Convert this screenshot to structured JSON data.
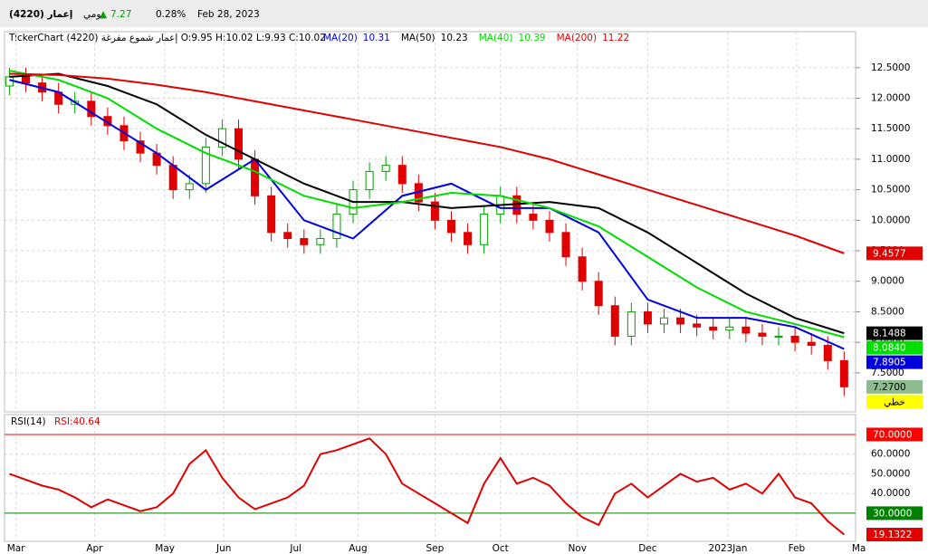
{
  "header": {
    "symbol": "إعمار (4220)",
    "period": "يومي",
    "change_arrow": "▲",
    "price": 7.27,
    "change": "0.28%",
    "date": "Feb 28, 2023",
    "legend_title": "TickerChart إعمار شموع مفرغة (4220) O:9.95 H:10.02 L:9.93 C:10.02"
  },
  "chart_data": [
    {
      "type": "candlestick",
      "up_color": "#00a000",
      "down_color": "#e00000",
      "x": [
        0,
        1,
        2,
        3,
        4,
        5,
        6,
        7,
        8,
        9,
        10,
        11,
        12,
        13,
        14,
        15,
        16,
        17,
        18,
        19,
        20,
        21,
        22,
        23,
        24,
        25,
        26,
        27,
        28,
        29,
        30,
        31,
        32,
        33,
        34,
        35,
        36,
        37,
        38,
        39,
        40,
        41,
        42,
        43,
        44,
        45,
        46,
        47,
        48,
        49,
        50,
        51
      ],
      "open": [
        12.2,
        12.35,
        12.25,
        12.1,
        11.9,
        11.95,
        11.7,
        11.55,
        11.3,
        11.1,
        10.9,
        10.5,
        10.6,
        11.2,
        11.5,
        11.0,
        10.4,
        9.8,
        9.7,
        9.6,
        9.7,
        10.1,
        10.5,
        10.8,
        10.9,
        10.6,
        10.3,
        10.0,
        9.8,
        9.6,
        10.1,
        10.4,
        10.1,
        10.0,
        9.8,
        9.4,
        9.0,
        8.6,
        8.1,
        8.5,
        8.3,
        8.4,
        8.3,
        8.25,
        8.2,
        8.25,
        8.15,
        8.1,
        8.1,
        8.0,
        7.95,
        7.7
      ],
      "high": [
        12.5,
        12.5,
        12.4,
        12.25,
        12.1,
        12.1,
        11.85,
        11.7,
        11.45,
        11.25,
        11.05,
        10.75,
        11.35,
        11.65,
        11.65,
        11.15,
        10.55,
        9.95,
        9.85,
        9.85,
        10.25,
        10.65,
        10.95,
        11.05,
        11.05,
        10.75,
        10.45,
        10.15,
        9.95,
        10.25,
        10.55,
        10.55,
        10.25,
        10.15,
        9.95,
        9.55,
        9.15,
        8.75,
        8.65,
        8.65,
        8.55,
        8.55,
        8.45,
        8.4,
        8.4,
        8.4,
        8.3,
        8.25,
        8.25,
        8.15,
        8.1,
        7.85
      ],
      "low": [
        12.05,
        12.1,
        11.95,
        11.75,
        11.75,
        11.55,
        11.4,
        11.15,
        10.95,
        10.75,
        10.35,
        10.35,
        10.45,
        11.05,
        10.85,
        10.25,
        9.65,
        9.55,
        9.45,
        9.45,
        9.55,
        9.95,
        10.35,
        10.65,
        10.45,
        10.15,
        9.85,
        9.65,
        9.45,
        9.45,
        9.95,
        9.95,
        9.85,
        9.65,
        9.25,
        8.85,
        8.45,
        7.95,
        7.95,
        8.15,
        8.15,
        8.15,
        8.1,
        8.05,
        8.05,
        8.0,
        7.95,
        7.95,
        7.85,
        7.8,
        7.55,
        7.12
      ],
      "close": [
        12.35,
        12.25,
        12.1,
        11.9,
        11.95,
        11.7,
        11.55,
        11.3,
        11.1,
        10.9,
        10.5,
        10.6,
        11.2,
        11.5,
        11.0,
        10.4,
        9.8,
        9.7,
        9.6,
        9.7,
        10.1,
        10.5,
        10.8,
        10.9,
        10.6,
        10.3,
        10.0,
        9.8,
        9.6,
        10.1,
        10.4,
        10.1,
        10.0,
        9.8,
        9.4,
        9.0,
        8.6,
        8.1,
        8.5,
        8.3,
        8.4,
        8.3,
        8.25,
        8.2,
        8.25,
        8.15,
        8.1,
        8.1,
        8.0,
        7.95,
        7.7,
        7.27
      ],
      "close_label": "7.2700",
      "close_badge_color": "#8fbc8f",
      "scale_mode": "خطي",
      "series": [
        {
          "name": "MA(20)",
          "legend_value": 10.31,
          "color": "#0000dd",
          "x": [
            0,
            3,
            6,
            9,
            12,
            15,
            18,
            21,
            24,
            27,
            30,
            33,
            36,
            39,
            42,
            45,
            48,
            51
          ],
          "values": [
            12.3,
            12.1,
            11.6,
            11.1,
            10.5,
            11.0,
            10.0,
            9.7,
            10.4,
            10.6,
            10.2,
            10.2,
            9.8,
            8.7,
            8.4,
            8.4,
            8.25,
            7.8905
          ],
          "last_label": "7.8905"
        },
        {
          "name": "MA(50)",
          "legend_value": 10.23,
          "color": "#000000",
          "x": [
            0,
            3,
            6,
            9,
            12,
            15,
            18,
            21,
            24,
            27,
            30,
            33,
            36,
            39,
            42,
            45,
            48,
            51
          ],
          "values": [
            12.35,
            12.4,
            12.2,
            11.9,
            11.4,
            11.0,
            10.6,
            10.3,
            10.3,
            10.2,
            10.25,
            10.3,
            10.2,
            9.8,
            9.3,
            8.8,
            8.4,
            8.1488
          ],
          "last_label": "8.1488"
        },
        {
          "name": "MA(40)",
          "legend_value": 10.39,
          "color": "#00dd00",
          "x": [
            0,
            3,
            6,
            9,
            12,
            15,
            18,
            21,
            24,
            27,
            30,
            33,
            36,
            39,
            42,
            45,
            48,
            51
          ],
          "values": [
            12.45,
            12.3,
            12.0,
            11.5,
            11.1,
            10.8,
            10.4,
            10.2,
            10.3,
            10.45,
            10.4,
            10.2,
            9.9,
            9.4,
            8.9,
            8.5,
            8.3,
            8.084
          ],
          "last_label": "8.0840"
        },
        {
          "name": "MA(200)",
          "legend_value": 11.22,
          "color": "#e00000",
          "x": [
            0,
            3,
            6,
            9,
            12,
            15,
            18,
            21,
            24,
            27,
            30,
            33,
            36,
            39,
            42,
            45,
            48,
            51
          ],
          "values": [
            12.4,
            12.38,
            12.32,
            12.22,
            12.1,
            11.95,
            11.8,
            11.65,
            11.5,
            11.35,
            11.2,
            11.0,
            10.75,
            10.5,
            10.25,
            10.0,
            9.75,
            9.4577
          ],
          "last_label": "9.4577"
        }
      ],
      "xlim": [
        -0.3,
        51.7
      ],
      "ylim": [
        6.86,
        13.09
      ],
      "yticks": [
        {
          "value": 7.5,
          "label": "7.5000"
        },
        {
          "value": 8,
          "label": "8.0000"
        },
        {
          "value": 8.5,
          "label": "8.5000"
        },
        {
          "value": 9,
          "label": "9.0000"
        },
        {
          "value": 9.5,
          "label": "9.5000"
        },
        {
          "value": 10,
          "label": "10.0000"
        },
        {
          "value": 10.5,
          "label": "10.5000"
        },
        {
          "value": 11,
          "label": "11.0000"
        },
        {
          "value": 11.5,
          "label": "11.5000"
        },
        {
          "value": 12,
          "label": "12.0000"
        },
        {
          "value": 12.5,
          "label": "12.5000"
        }
      ],
      "grid": true
    },
    {
      "type": "line",
      "title": "RSI(14)",
      "current": "RSI:40.64",
      "color": "#e00000",
      "values": [
        50,
        47,
        44,
        42,
        38,
        33,
        37,
        34,
        31,
        33,
        40,
        55,
        62,
        48,
        38,
        32,
        35,
        38,
        44,
        60,
        62,
        65,
        68,
        60,
        45,
        40,
        35,
        30,
        25,
        45,
        58,
        45,
        48,
        44,
        35,
        28,
        24,
        40,
        45,
        38,
        44,
        50,
        46,
        48,
        42,
        45,
        40,
        50,
        38,
        35,
        26,
        19.1322
      ],
      "last_label": "19.1322",
      "ylim": [
        15.7,
        80.1
      ],
      "yticks": [
        {
          "value": 40,
          "label": "40.0000"
        },
        {
          "value": 50,
          "label": "50.0000"
        },
        {
          "value": 60,
          "label": "60.0000"
        }
      ],
      "level_lines": [
        {
          "value": 70,
          "label": "70.0000",
          "color": "#ff0000"
        },
        {
          "value": 30,
          "label": "30.0000",
          "color": "#008000"
        }
      ],
      "xticks": [
        {
          "value": 0.4,
          "label": "Mar"
        },
        {
          "value": 5.2,
          "label": "Apr"
        },
        {
          "value": 9.5,
          "label": "May"
        },
        {
          "value": 13.1,
          "label": "Jun"
        },
        {
          "value": 17.5,
          "label": "Jul"
        },
        {
          "value": 21.3,
          "label": "Aug"
        },
        {
          "value": 26.0,
          "label": "Sep"
        },
        {
          "value": 30.0,
          "label": "Oct"
        },
        {
          "value": 34.7,
          "label": "Nov"
        },
        {
          "value": 39.0,
          "label": "Dec"
        },
        {
          "value": 43.9,
          "label": "2023Jan"
        },
        {
          "value": 48.1,
          "label": "Feb"
        },
        {
          "value": 51.9,
          "label": "Ma"
        }
      ],
      "grid": true
    }
  ]
}
